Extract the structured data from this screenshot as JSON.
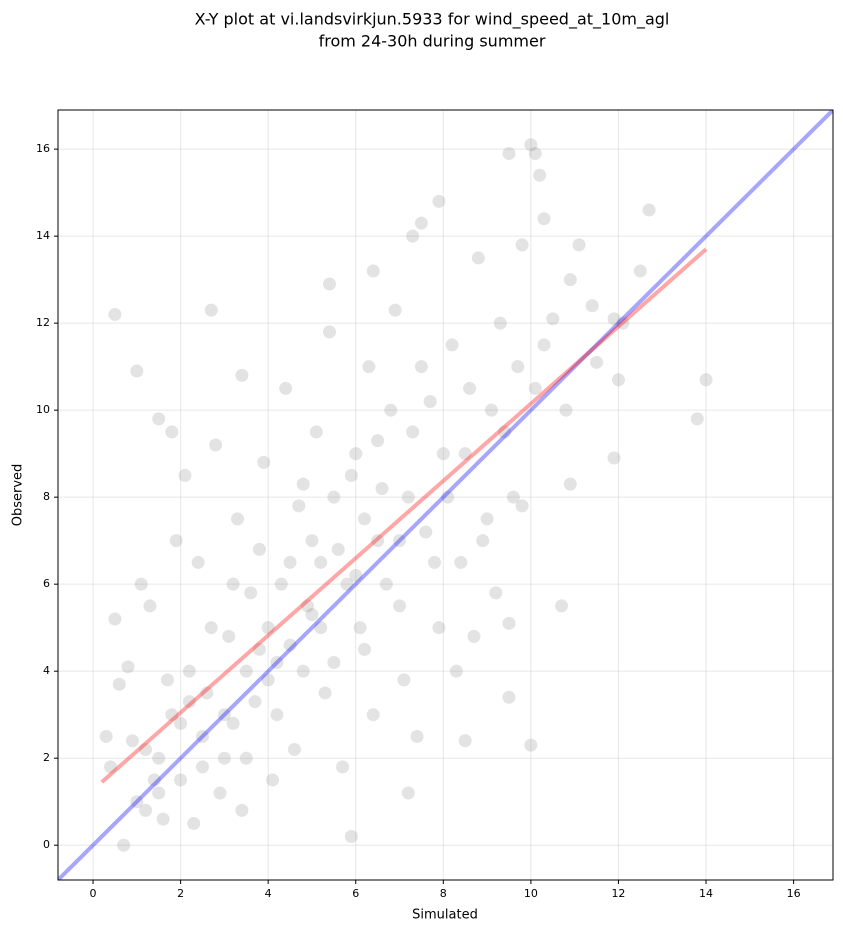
{
  "chart_data": {
    "type": "scatter",
    "title": [
      "X-Y plot at vi.landsvirkjun.5933 for wind_speed_at_10m_agl",
      "from 24-30h during summer"
    ],
    "xlabel": "Simulated",
    "ylabel": "Observed",
    "xlim": [
      -0.8,
      16.9
    ],
    "ylim": [
      -0.8,
      16.9
    ],
    "xticks": [
      0,
      2,
      4,
      6,
      8,
      10,
      12,
      14,
      16
    ],
    "yticks": [
      0,
      2,
      4,
      6,
      8,
      10,
      12,
      14,
      16
    ],
    "grid": true,
    "color": "#808080",
    "x": [
      0.5,
      1.0,
      2.7,
      3.4,
      7.9,
      10,
      10.1,
      9.5,
      10.2,
      12.7,
      10.3,
      13.8,
      14,
      11.9,
      10.7,
      10,
      9.5,
      9.5,
      8.5,
      7.2,
      5.9,
      0.7,
      1.5,
      1.8,
      12.5,
      12.1,
      11.9,
      11.4,
      11.1,
      10.9,
      10.5,
      9.8,
      7.5,
      7.3,
      6.4,
      5.4,
      12.0,
      11.5,
      10.8,
      10.9,
      1,
      1.2,
      1.5,
      1.8,
      2,
      2.2,
      2.5,
      2.7,
      3,
      3.2,
      3.5,
      3.8,
      4,
      4.2,
      4.5,
      4.8,
      5,
      5.2,
      5.5,
      5.8,
      6,
      6.2,
      6.5,
      6.8,
      7,
      7.2,
      7.5,
      7.8,
      8,
      8.3,
      8.6,
      9,
      9.3,
      9.6,
      0.3,
      0.4,
      0.5,
      0.6,
      0.8,
      0.9,
      1.1,
      1.3,
      1.4,
      1.6,
      1.7,
      1.9,
      2.1,
      2.3,
      2.4,
      2.6,
      2.8,
      2.9,
      3.1,
      3.3,
      3.4,
      3.6,
      3.7,
      3.9,
      4.1,
      4.3,
      4.4,
      4.6,
      4.7,
      4.9,
      5.1,
      5.3,
      5.4,
      5.6,
      5.7,
      5.9,
      6.1,
      6.3,
      6.4,
      6.6,
      6.7,
      6.9,
      7.1,
      7.3,
      7.4,
      7.6,
      7.7,
      7.9,
      8.1,
      8.2,
      8.4,
      8.5,
      8.7,
      8.8,
      8.9,
      9.1,
      9.2,
      9.4,
      9.7,
      9.8,
      10.1,
      10.3,
      3,
      3.5,
      4,
      4.5,
      5,
      2,
      2.5,
      1.5,
      6,
      5.5,
      4.8,
      3.8,
      6.5,
      7,
      2.2,
      3.2,
      4.2,
      5.2,
      6.2,
      1.2
    ],
    "y": [
      12.2,
      10.9,
      12.3,
      10.8,
      14.8,
      16.1,
      15.9,
      15.9,
      15.4,
      14.6,
      14.4,
      9.8,
      10.7,
      8.9,
      5.5,
      2.3,
      3.4,
      5.1,
      2.4,
      1.2,
      0.2,
      0,
      9.8,
      9.5,
      13.2,
      12.0,
      12.1,
      12.4,
      13.8,
      13.0,
      12.1,
      13.8,
      14.3,
      14.0,
      13.2,
      12.9,
      10.7,
      11.1,
      10.0,
      8.3,
      1,
      0.8,
      2,
      3,
      1.5,
      4,
      2.5,
      5,
      3,
      6,
      2,
      4.5,
      5,
      3,
      6.5,
      4,
      7,
      5,
      8,
      6,
      9,
      4.5,
      7,
      10,
      5.5,
      8,
      11,
      6.5,
      9,
      4,
      10.5,
      7.5,
      12,
      8,
      2.5,
      1.8,
      5.2,
      3.7,
      4.1,
      2.4,
      6,
      5.5,
      1.5,
      0.6,
      3.8,
      7,
      8.5,
      0.5,
      6.5,
      3.5,
      9.2,
      1.2,
      4.8,
      7.5,
      0.8,
      5.8,
      3.3,
      8.8,
      1.5,
      6,
      10.5,
      2.2,
      7.8,
      5.5,
      9.5,
      3.5,
      11.8,
      6.8,
      1.8,
      8.5,
      5,
      11,
      3,
      8.2,
      6,
      12.3,
      3.8,
      9.5,
      2.5,
      7.2,
      10.2,
      5,
      8,
      11.5,
      6.5,
      9,
      4.8,
      13.5,
      7,
      10,
      5.8,
      9.5,
      11,
      7.8,
      10.5,
      11.5,
      2,
      4,
      3.8,
      4.6,
      5.3,
      2.8,
      1.8,
      1.2,
      6.2,
      4.2,
      8.3,
      6.8,
      9.3,
      7,
      3.3,
      2.8,
      4.2,
      6.5,
      7.5,
      2.2
    ],
    "lines": [
      {
        "color": "#0000ff",
        "x": [
          -0.8,
          16.9
        ],
        "y": [
          -0.8,
          16.9
        ]
      },
      {
        "color": "#ff0000",
        "x": [
          0.2,
          14
        ],
        "y": [
          1.45,
          13.7
        ]
      }
    ]
  }
}
